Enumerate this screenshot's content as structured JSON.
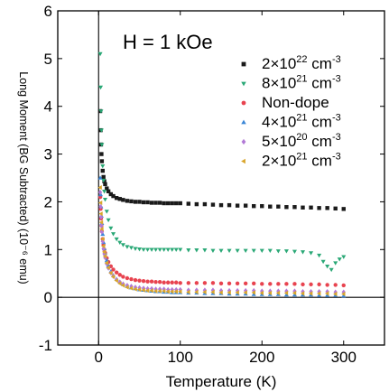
{
  "chart_data": {
    "type": "scatter",
    "annotation": "H = 1 kOe",
    "xlabel": "Temperature (K)",
    "ylabel": "Long Moment (BG Subtracted) (10⁻⁶ emu)",
    "xlim": [
      -50,
      350
    ],
    "ylim": [
      -1,
      6
    ],
    "xticks": [
      0,
      100,
      200,
      300
    ],
    "yticks": [
      -1,
      0,
      1,
      2,
      3,
      4,
      5,
      6
    ],
    "grid": false,
    "legend_position": "top-right",
    "series": [
      {
        "name": "2×10²² cm⁻³",
        "label_parts": [
          "2×10",
          "22",
          " cm",
          "-3"
        ],
        "color": "#1a1a1a",
        "marker": "square",
        "x": [
          2,
          2.5,
          3,
          3.5,
          4,
          5,
          6,
          7,
          8,
          10,
          12,
          15,
          18,
          22,
          26,
          30,
          35,
          40,
          45,
          50,
          55,
          60,
          65,
          70,
          75,
          80,
          85,
          90,
          95,
          100,
          110,
          120,
          130,
          140,
          150,
          160,
          170,
          180,
          190,
          200,
          210,
          220,
          230,
          240,
          250,
          260,
          270,
          280,
          290,
          300
        ],
        "y": [
          3.9,
          3.5,
          3.2,
          3.0,
          2.85,
          2.65,
          2.52,
          2.43,
          2.37,
          2.28,
          2.22,
          2.16,
          2.12,
          2.08,
          2.06,
          2.04,
          2.02,
          2.01,
          2.0,
          2.0,
          1.99,
          1.99,
          1.98,
          1.98,
          1.98,
          1.97,
          1.97,
          1.97,
          1.97,
          1.97,
          1.96,
          1.95,
          1.95,
          1.94,
          1.93,
          1.93,
          1.92,
          1.92,
          1.91,
          1.91,
          1.9,
          1.9,
          1.89,
          1.89,
          1.88,
          1.88,
          1.87,
          1.87,
          1.86,
          1.85
        ]
      },
      {
        "name": "8×10²¹ cm⁻³",
        "label_parts": [
          "8×10",
          "21",
          " cm",
          "-3"
        ],
        "color": "#2aa876",
        "marker": "triangle-down",
        "x": [
          2,
          2.5,
          3,
          3.5,
          4,
          5,
          6,
          7,
          8,
          10,
          12,
          15,
          18,
          22,
          26,
          30,
          35,
          40,
          45,
          50,
          55,
          60,
          65,
          70,
          75,
          80,
          85,
          90,
          95,
          100,
          110,
          120,
          130,
          140,
          150,
          160,
          170,
          180,
          190,
          200,
          210,
          220,
          230,
          240,
          250,
          260,
          270,
          275,
          280,
          285,
          290,
          295,
          300
        ],
        "y": [
          5.1,
          4.4,
          3.9,
          3.5,
          3.2,
          2.75,
          2.45,
          2.22,
          2.05,
          1.8,
          1.62,
          1.45,
          1.33,
          1.22,
          1.15,
          1.1,
          1.06,
          1.04,
          1.02,
          1.01,
          1.0,
          1.0,
          1.0,
          1.0,
          1.0,
          1.0,
          1.0,
          1.0,
          1.0,
          1.0,
          0.99,
          0.99,
          0.99,
          0.98,
          0.98,
          0.98,
          0.98,
          0.98,
          0.98,
          0.98,
          0.98,
          0.97,
          0.97,
          0.96,
          0.95,
          0.93,
          0.88,
          0.75,
          0.65,
          0.58,
          0.72,
          0.8,
          0.85
        ]
      },
      {
        "name": "Non-dope",
        "color": "#e8434f",
        "marker": "circle",
        "x": [
          2,
          2.5,
          3,
          3.5,
          4,
          5,
          6,
          7,
          8,
          10,
          12,
          15,
          18,
          22,
          26,
          30,
          35,
          40,
          45,
          50,
          55,
          60,
          65,
          70,
          75,
          80,
          85,
          90,
          95,
          100,
          110,
          120,
          130,
          140,
          150,
          160,
          170,
          180,
          190,
          200,
          210,
          220,
          230,
          240,
          250,
          260,
          270,
          280,
          290,
          300
        ],
        "y": [
          2.1,
          1.85,
          1.65,
          1.5,
          1.38,
          1.22,
          1.1,
          1.0,
          0.93,
          0.82,
          0.74,
          0.65,
          0.58,
          0.52,
          0.47,
          0.43,
          0.4,
          0.38,
          0.36,
          0.35,
          0.34,
          0.33,
          0.33,
          0.32,
          0.32,
          0.31,
          0.31,
          0.31,
          0.31,
          0.3,
          0.3,
          0.3,
          0.3,
          0.3,
          0.29,
          0.29,
          0.29,
          0.29,
          0.29,
          0.28,
          0.28,
          0.28,
          0.28,
          0.28,
          0.27,
          0.27,
          0.27,
          0.26,
          0.26,
          0.25
        ]
      },
      {
        "name": "4×10²¹ cm⁻³",
        "label_parts": [
          "4×10",
          "21",
          " cm",
          "-3"
        ],
        "color": "#3a86d6",
        "marker": "triangle-up",
        "x": [
          2,
          2.5,
          3,
          3.5,
          4,
          5,
          6,
          7,
          8,
          10,
          12,
          15,
          18,
          22,
          26,
          30,
          35,
          40,
          45,
          50,
          55,
          60,
          65,
          70,
          75,
          80,
          85,
          90,
          95,
          100,
          110,
          120,
          130,
          140,
          150,
          160,
          170,
          180,
          190,
          200,
          210,
          220,
          230,
          240,
          250,
          260,
          270,
          280,
          290,
          300
        ],
        "y": [
          2.5,
          2.15,
          1.9,
          1.7,
          1.55,
          1.32,
          1.15,
          1.02,
          0.92,
          0.77,
          0.66,
          0.54,
          0.46,
          0.38,
          0.32,
          0.27,
          0.23,
          0.2,
          0.18,
          0.16,
          0.15,
          0.14,
          0.13,
          0.12,
          0.12,
          0.11,
          0.11,
          0.1,
          0.1,
          0.1,
          0.09,
          0.09,
          0.08,
          0.08,
          0.08,
          0.07,
          0.07,
          0.07,
          0.06,
          0.06,
          0.06,
          0.06,
          0.05,
          0.05,
          0.05,
          0.05,
          0.04,
          0.04,
          0.04,
          0.03
        ]
      },
      {
        "name": "5×10²⁰ cm⁻³",
        "label_parts": [
          "5×10",
          "20",
          " cm",
          "-3"
        ],
        "color": "#b27ad6",
        "marker": "diamond",
        "x": [
          2,
          2.5,
          3,
          3.5,
          4,
          5,
          6,
          7,
          8,
          10,
          12,
          15,
          18,
          22,
          26,
          30,
          35,
          40,
          45,
          50,
          55,
          60,
          65,
          70,
          75,
          80,
          85,
          90,
          95,
          100,
          110,
          120,
          130,
          140,
          150,
          160,
          170,
          180,
          190,
          200,
          210,
          220,
          230,
          240,
          250,
          260,
          270,
          280,
          290,
          300
        ],
        "y": [
          2.2,
          1.9,
          1.68,
          1.5,
          1.37,
          1.17,
          1.02,
          0.91,
          0.83,
          0.7,
          0.61,
          0.51,
          0.44,
          0.37,
          0.32,
          0.28,
          0.25,
          0.23,
          0.21,
          0.2,
          0.19,
          0.18,
          0.18,
          0.17,
          0.17,
          0.17,
          0.16,
          0.16,
          0.16,
          0.16,
          0.15,
          0.15,
          0.15,
          0.15,
          0.14,
          0.14,
          0.14,
          0.14,
          0.14,
          0.13,
          0.13,
          0.13,
          0.13,
          0.13,
          0.12,
          0.12,
          0.12,
          0.12,
          0.11,
          0.11
        ]
      },
      {
        "name": "2×10²¹ cm⁻³",
        "label_parts": [
          "2×10",
          "21",
          " cm",
          "-3"
        ],
        "color": "#d9a52b",
        "marker": "triangle-left",
        "x": [
          2,
          2.5,
          3,
          3.5,
          4,
          5,
          6,
          7,
          8,
          10,
          12,
          15,
          18,
          22,
          26,
          30,
          35,
          40,
          45,
          50,
          55,
          60,
          65,
          70,
          75,
          80,
          85,
          90,
          95,
          100,
          110,
          120,
          130,
          140,
          150,
          160,
          170,
          180,
          190,
          200,
          210,
          220,
          230,
          240,
          250,
          260,
          270,
          280,
          290,
          300
        ],
        "y": [
          2.3,
          1.98,
          1.75,
          1.57,
          1.43,
          1.22,
          1.07,
          0.95,
          0.86,
          0.72,
          0.62,
          0.51,
          0.43,
          0.35,
          0.29,
          0.25,
          0.21,
          0.19,
          0.17,
          0.16,
          0.15,
          0.14,
          0.14,
          0.13,
          0.13,
          0.13,
          0.12,
          0.12,
          0.12,
          0.12,
          0.11,
          0.11,
          0.11,
          0.11,
          0.1,
          0.1,
          0.1,
          0.1,
          0.1,
          0.09,
          0.09,
          0.09,
          0.09,
          0.09,
          0.08,
          0.08,
          0.08,
          0.08,
          0.07,
          0.07
        ]
      }
    ]
  }
}
